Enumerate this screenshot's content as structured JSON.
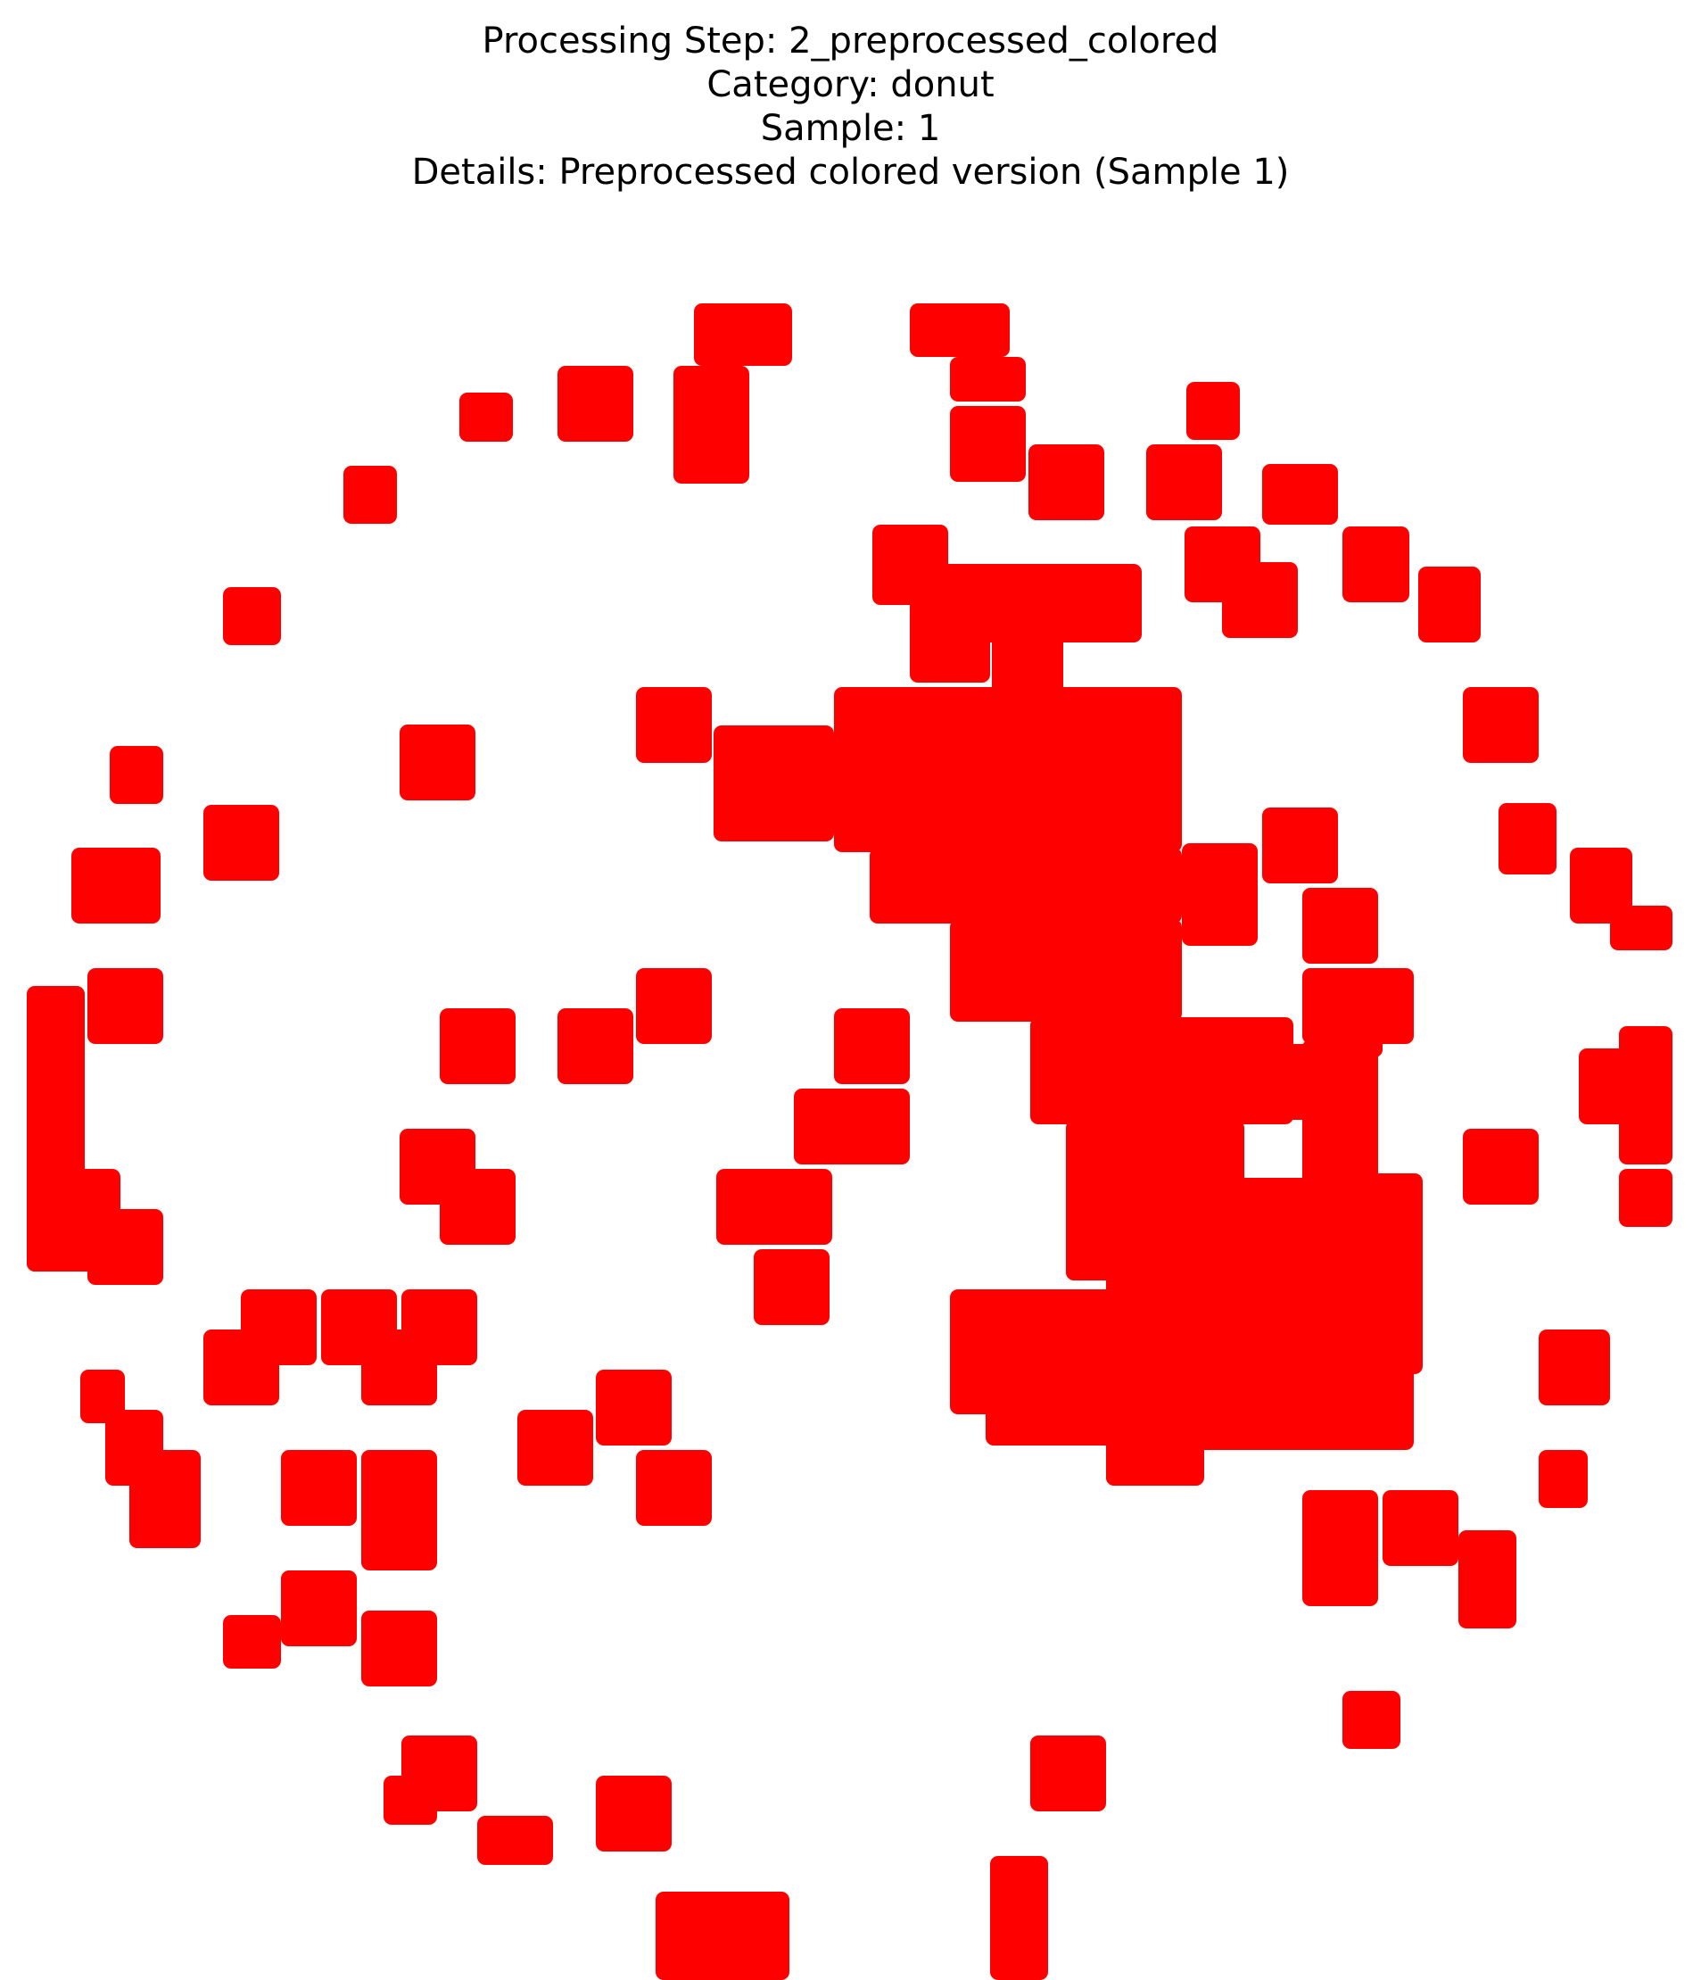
{
  "title": {
    "step": "Processing Step: 2_preprocessed_colored",
    "category": "Category: donut",
    "sample": "Sample: 1",
    "details": "Details: Preprocessed colored version (Sample 1)"
  },
  "image": {
    "fill_color": "#ff0000",
    "background_color": "#ffffff"
  }
}
